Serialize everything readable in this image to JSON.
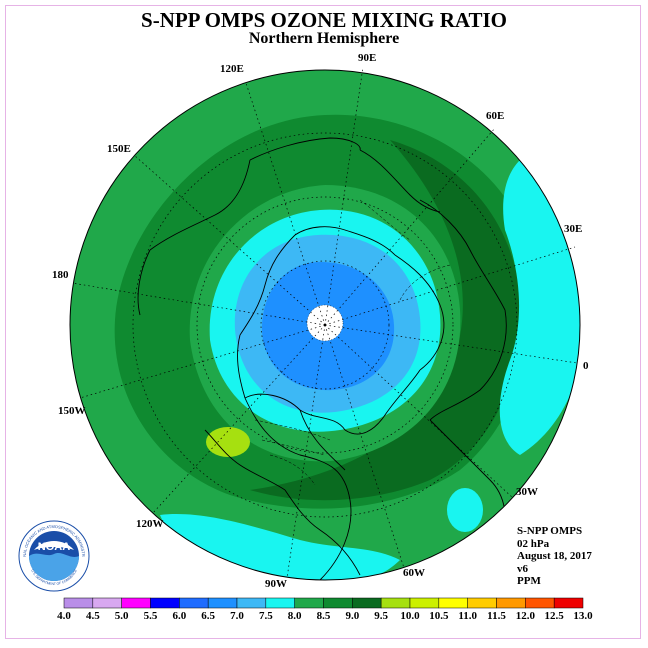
{
  "header": {
    "title": "S-NPP OMPS OZONE MIXING RATIO",
    "subtitle": "Northern Hemisphere"
  },
  "map": {
    "projection": "north polar stereographic",
    "longitude_labels": [
      "90E",
      "60E",
      "30E",
      "0",
      "30W",
      "60W",
      "90W",
      "120W",
      "150W",
      "180",
      "150E",
      "120E"
    ],
    "colors": {
      "level_7_0": "#3db8f5",
      "level_7_5": "#19f5f0",
      "level_8_0": "#20a84a",
      "level_8_5": "#0f8a30",
      "level_9_0": "#0a6b20",
      "level_9_5": "#a6e010",
      "no_data": "#ffffff",
      "level_6_5": "#1e90ff"
    }
  },
  "info": {
    "instrument": "S-NPP OMPS",
    "pressure": "02 hPa",
    "date": "August 18, 2017",
    "version": "v6",
    "units": "PPM"
  },
  "logo": {
    "text": "NOAA",
    "ring_text": "NATIONAL OCEANIC AND ATMOSPHERIC ADMINISTRATION",
    "ring_text_bottom": "U.S. DEPARTMENT OF COMMERCE"
  },
  "colorbar": {
    "ticks": [
      "4.0",
      "4.5",
      "5.0",
      "5.5",
      "6.0",
      "6.5",
      "7.0",
      "7.5",
      "8.0",
      "8.5",
      "9.0",
      "9.5",
      "10.0",
      "10.5",
      "11.0",
      "11.5",
      "12.0",
      "12.5",
      "13.0"
    ],
    "colors": [
      "#b98ee8",
      "#d8a8f0",
      "#ff00ff",
      "#0000ff",
      "#1f6cff",
      "#1e90ff",
      "#3db8f5",
      "#19f5f0",
      "#20a84a",
      "#0f8a30",
      "#0a6b20",
      "#a6e010",
      "#ccf000",
      "#ffff00",
      "#ffcc00",
      "#ff9900",
      "#ff5500",
      "#ee0000",
      "#8b5a2b"
    ]
  }
}
